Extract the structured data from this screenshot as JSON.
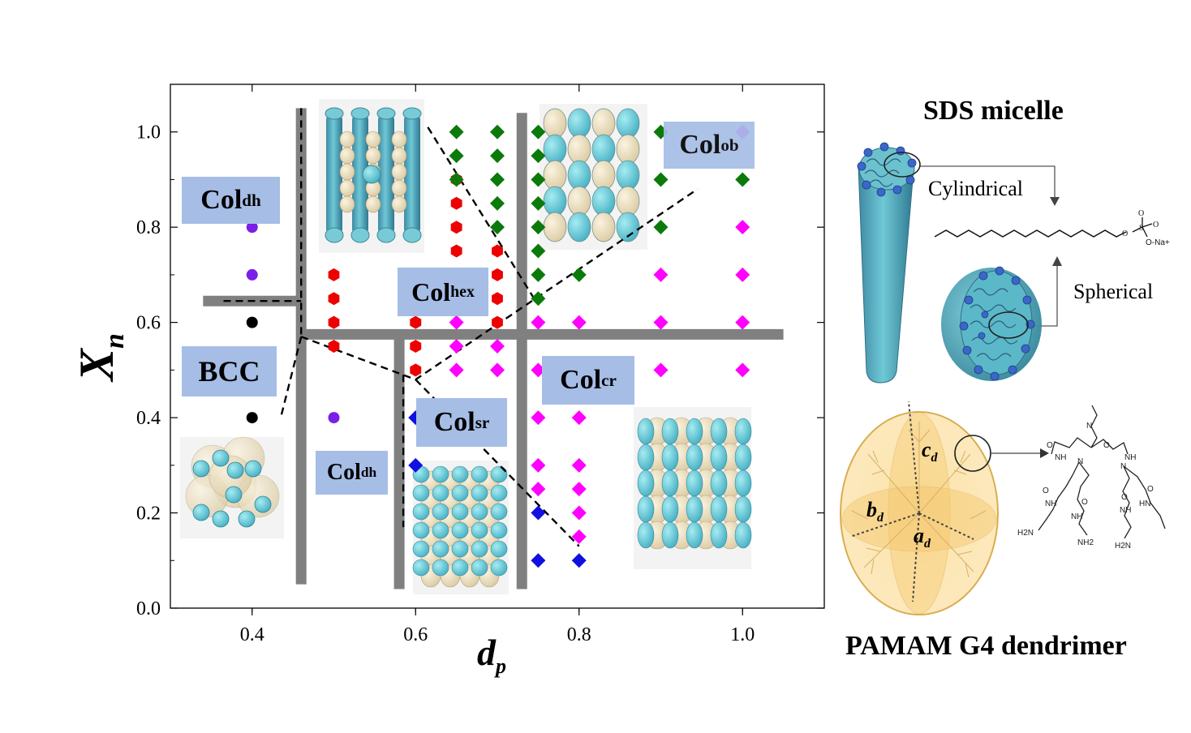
{
  "chart_data": {
    "type": "scatter",
    "xlabel": "d",
    "xlabel_sub": "p",
    "ylabel": "X",
    "ylabel_sub": "n",
    "xlim": [
      0.3,
      1.1
    ],
    "ylim": [
      0.0,
      1.1
    ],
    "x_ticks": [
      0.4,
      0.6,
      0.8,
      1.0
    ],
    "x_tick_labels": [
      "0.4",
      "0.6",
      "0.8",
      "1.0"
    ],
    "y_ticks": [
      0.0,
      0.2,
      0.4,
      0.6,
      0.8,
      1.0
    ],
    "y_tick_labels": [
      "0.0",
      "0.2",
      "0.4",
      "0.6",
      "0.8",
      "1.0"
    ],
    "grid": false,
    "series": [
      {
        "marker": "circle",
        "color": "#7a1fe8",
        "points": [
          [
            0.4,
            0.8
          ],
          [
            0.4,
            0.7
          ],
          [
            0.4,
            0.5
          ],
          [
            0.5,
            0.4
          ],
          [
            0.5,
            0.3
          ]
        ]
      },
      {
        "marker": "circle",
        "color": "#000000",
        "points": [
          [
            0.4,
            0.6
          ],
          [
            0.4,
            0.4
          ]
        ]
      },
      {
        "marker": "hexagon",
        "color": "#ee0000",
        "points": [
          [
            0.5,
            0.7
          ],
          [
            0.5,
            0.65
          ],
          [
            0.5,
            0.6
          ],
          [
            0.5,
            0.55
          ],
          [
            0.6,
            0.7
          ],
          [
            0.6,
            0.65
          ],
          [
            0.6,
            0.6
          ],
          [
            0.6,
            0.55
          ],
          [
            0.6,
            0.5
          ],
          [
            0.65,
            0.9
          ],
          [
            0.65,
            0.85
          ],
          [
            0.65,
            0.8
          ],
          [
            0.65,
            0.75
          ],
          [
            0.65,
            0.7
          ],
          [
            0.65,
            0.65
          ],
          [
            0.7,
            0.75
          ],
          [
            0.7,
            0.7
          ],
          [
            0.7,
            0.65
          ],
          [
            0.7,
            0.6
          ]
        ]
      },
      {
        "marker": "diamond",
        "color": "#0b7a0b",
        "points": [
          [
            0.65,
            1.0
          ],
          [
            0.65,
            0.95
          ],
          [
            0.65,
            0.9
          ],
          [
            0.7,
            1.0
          ],
          [
            0.7,
            0.95
          ],
          [
            0.7,
            0.9
          ],
          [
            0.7,
            0.85
          ],
          [
            0.7,
            0.8
          ],
          [
            0.75,
            1.0
          ],
          [
            0.75,
            0.95
          ],
          [
            0.75,
            0.9
          ],
          [
            0.75,
            0.85
          ],
          [
            0.75,
            0.8
          ],
          [
            0.75,
            0.75
          ],
          [
            0.75,
            0.7
          ],
          [
            0.75,
            0.65
          ],
          [
            0.8,
            0.7
          ],
          [
            0.9,
            1.0
          ],
          [
            0.9,
            0.9
          ],
          [
            0.9,
            0.8
          ],
          [
            1.0,
            0.9
          ]
        ]
      },
      {
        "marker": "diamond",
        "color": "#ff00ff",
        "points": [
          [
            0.65,
            0.6
          ],
          [
            0.65,
            0.55
          ],
          [
            0.65,
            0.5
          ],
          [
            0.7,
            0.55
          ],
          [
            0.7,
            0.5
          ],
          [
            0.75,
            0.6
          ],
          [
            0.75,
            0.5
          ],
          [
            0.75,
            0.4
          ],
          [
            0.75,
            0.3
          ],
          [
            0.75,
            0.25
          ],
          [
            0.8,
            0.6
          ],
          [
            0.8,
            0.5
          ],
          [
            0.8,
            0.4
          ],
          [
            0.8,
            0.3
          ],
          [
            0.8,
            0.25
          ],
          [
            0.8,
            0.2
          ],
          [
            0.8,
            0.15
          ],
          [
            0.9,
            0.7
          ],
          [
            0.9,
            0.6
          ],
          [
            0.9,
            0.5
          ],
          [
            1.0,
            0.8
          ],
          [
            1.0,
            0.7
          ],
          [
            1.0,
            0.6
          ],
          [
            1.0,
            0.5
          ],
          [
            1.0,
            1.0
          ]
        ]
      },
      {
        "marker": "diamond",
        "color": "#1010e0",
        "points": [
          [
            0.6,
            0.4
          ],
          [
            0.6,
            0.3
          ],
          [
            0.75,
            0.2
          ],
          [
            0.75,
            0.1
          ],
          [
            0.8,
            0.1
          ]
        ]
      }
    ],
    "regions": [
      {
        "name": "Col",
        "sub": "dh"
      },
      {
        "name": "Col",
        "sub": "hex"
      },
      {
        "name": "Col",
        "sub": "ob"
      },
      {
        "name": "BCC",
        "sub": ""
      },
      {
        "name": "Col",
        "sub": "cr"
      },
      {
        "name": "Col",
        "sub": "sr"
      },
      {
        "name": "Col",
        "sub": "dh"
      }
    ],
    "phase_bars": [
      {
        "orientation": "v",
        "x": 0.46,
        "y": [
          0.05,
          1.05
        ]
      },
      {
        "orientation": "v",
        "x": 0.58,
        "y": [
          0.04,
          0.57
        ]
      },
      {
        "orientation": "v",
        "x": 0.73,
        "y": [
          0.04,
          1.04
        ]
      },
      {
        "orientation": "h",
        "y": 0.575,
        "x": [
          0.46,
          1.05
        ]
      },
      {
        "orientation": "h",
        "y": 0.645,
        "x": [
          0.34,
          0.46
        ]
      }
    ],
    "dashed_boundaries": [
      [
        [
          0.365,
          0.645
        ],
        [
          0.46,
          0.645
        ]
      ],
      [
        [
          0.46,
          1.05
        ],
        [
          0.46,
          0.57
        ]
      ],
      [
        [
          0.46,
          0.57
        ],
        [
          0.435,
          0.4
        ]
      ],
      [
        [
          0.46,
          0.57
        ],
        [
          0.6,
          0.48
        ],
        [
          0.945,
          0.88
        ]
      ],
      [
        [
          0.615,
          1.01
        ],
        [
          0.745,
          0.65
        ]
      ],
      [
        [
          0.6,
          0.48
        ],
        [
          0.8,
          0.13
        ]
      ],
      [
        [
          0.585,
          0.49
        ],
        [
          0.585,
          0.17
        ]
      ]
    ]
  },
  "sds": {
    "title": "SDS micelle",
    "cylindrical_label": "Cylindrical",
    "spherical_label": "Spherical",
    "sulfonate_label": "O-Na+"
  },
  "pamam": {
    "title": "PAMAM G4 dendrimer",
    "axis_a": "a",
    "axis_b": "b",
    "axis_c": "c",
    "axis_sub": "d"
  }
}
